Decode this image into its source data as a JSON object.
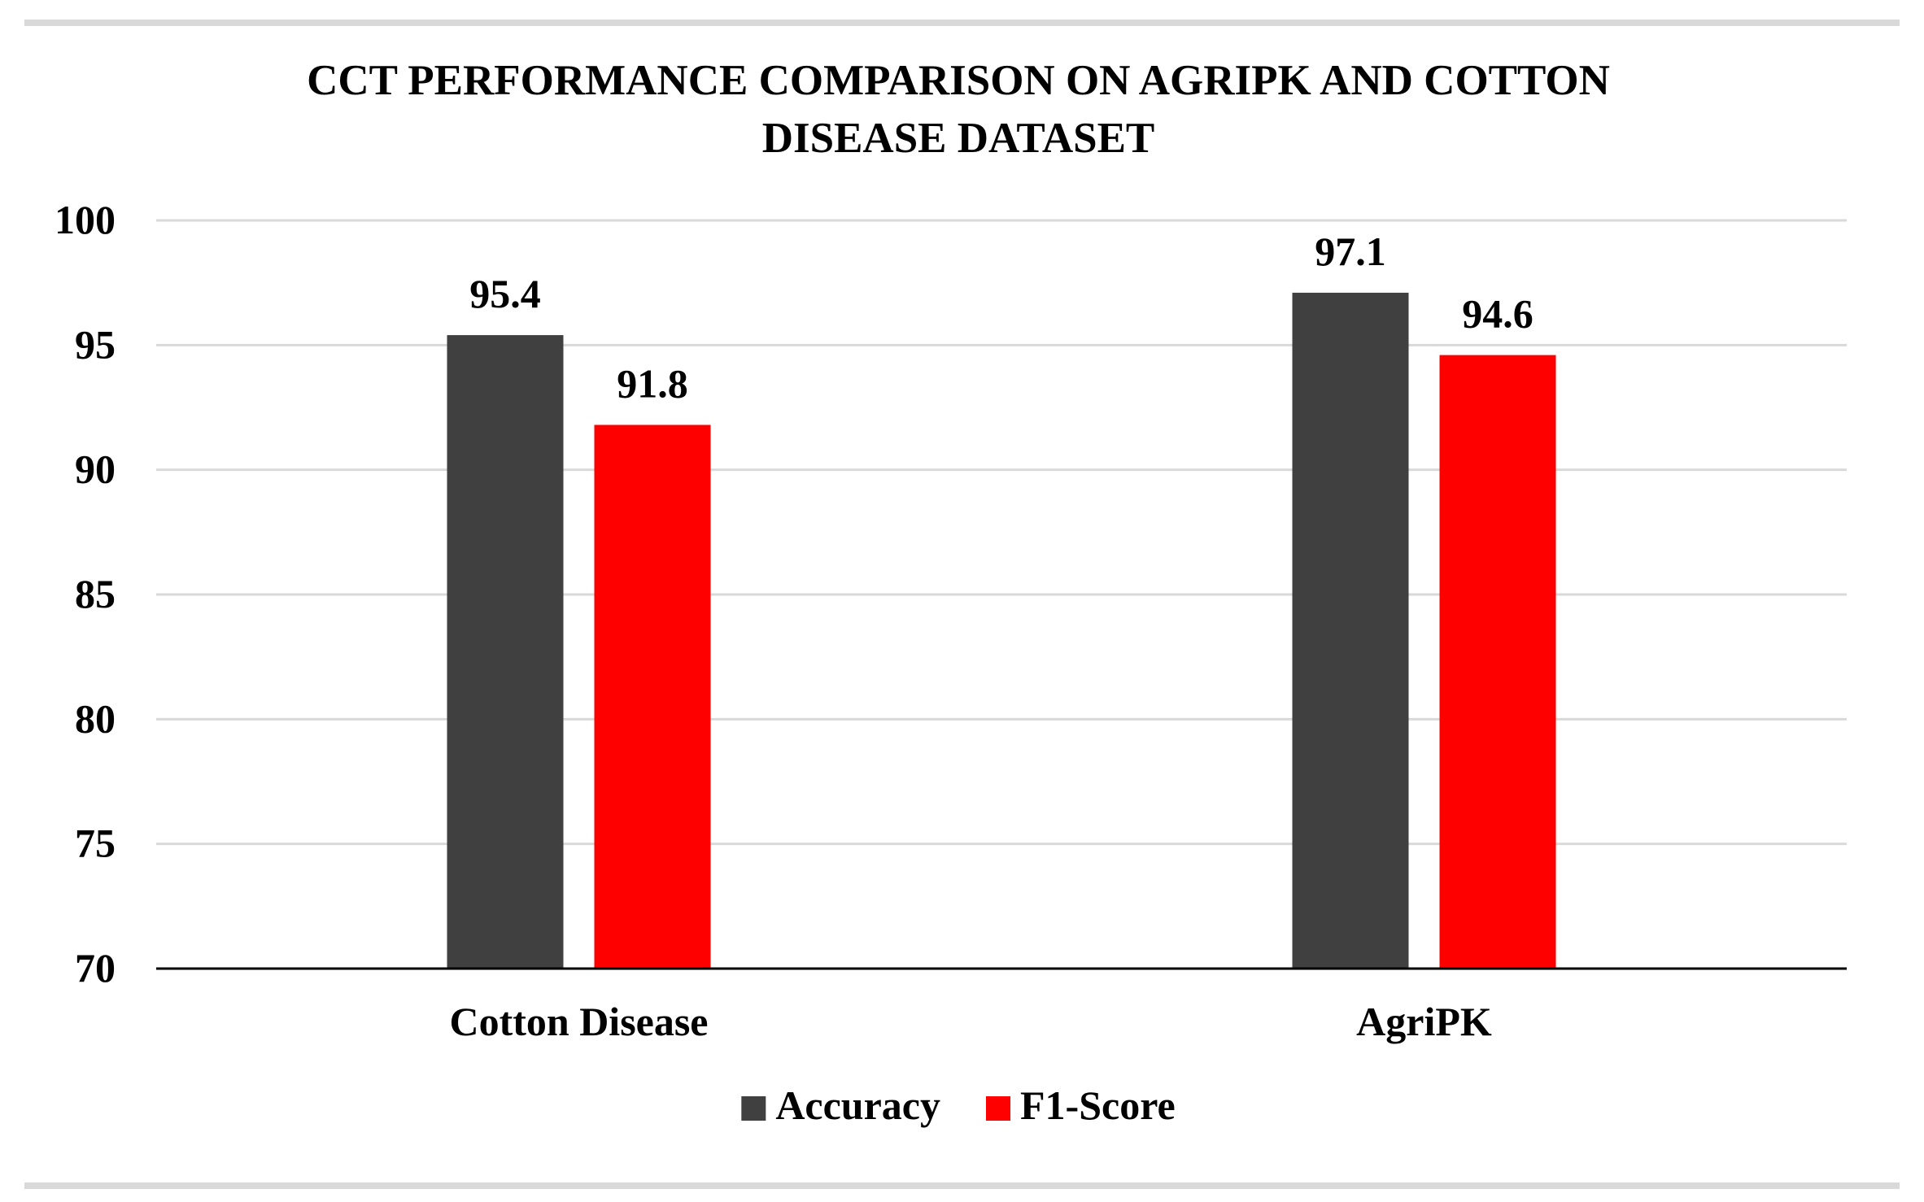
{
  "chart_data": {
    "type": "bar",
    "title_lines": [
      "CCT PERFORMANCE COMPARISON ON AGRIPK AND COTTON",
      "DISEASE DATASET"
    ],
    "categories": [
      "Cotton Disease",
      "AgriPK"
    ],
    "series": [
      {
        "name": "Accuracy",
        "values": [
          95.4,
          97.1
        ],
        "labels": [
          "95.4",
          "97.1"
        ],
        "color": "#404040"
      },
      {
        "name": "F1-Score",
        "values": [
          91.8,
          94.6
        ],
        "labels": [
          "91.8",
          "94.6"
        ],
        "color": "#ff0000"
      }
    ],
    "ylim": [
      70,
      100
    ],
    "yticks": [
      "70",
      "75",
      "80",
      "85",
      "90",
      "95",
      "100"
    ],
    "grid": true,
    "legend_position": "bottom",
    "gridline_color": "#d9d9d9"
  }
}
